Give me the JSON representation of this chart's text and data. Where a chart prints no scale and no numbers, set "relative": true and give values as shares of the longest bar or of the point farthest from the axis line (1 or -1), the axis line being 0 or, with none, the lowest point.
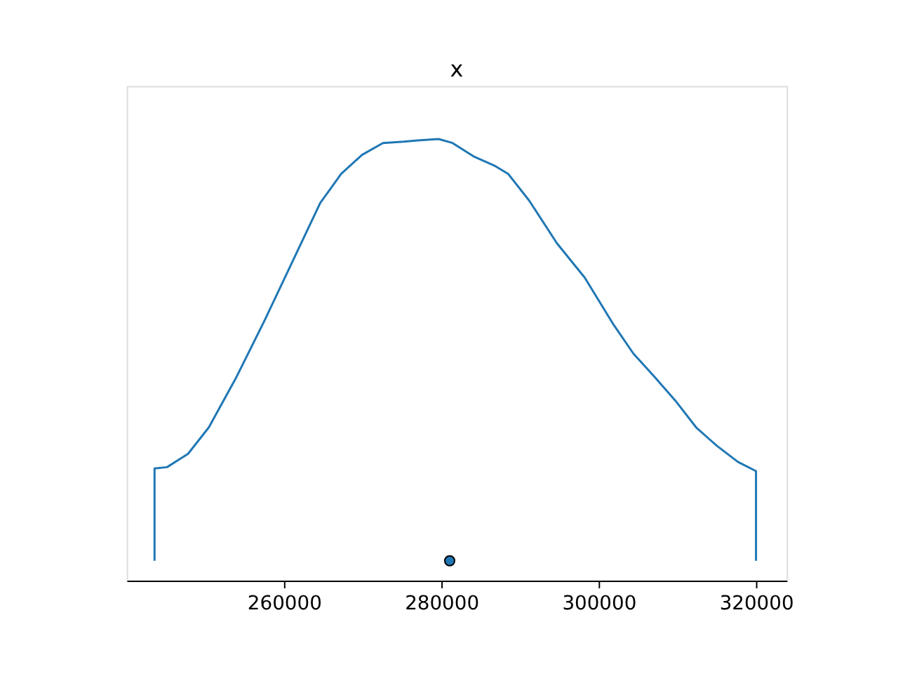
{
  "chart_data": {
    "type": "line",
    "title": "x",
    "relative": true,
    "xlim": [
      240000,
      323890
    ],
    "xticks": [
      260000,
      280000,
      300000,
      320000
    ],
    "grid": false,
    "series": [
      {
        "color": "#1f77b4",
        "marker": "none",
        "x": [
          243540,
          243540,
          245130,
          247790,
          250440,
          253980,
          257520,
          261060,
          264600,
          267260,
          269910,
          272570,
          275220,
          276990,
          279650,
          281420,
          284070,
          286730,
          288500,
          291150,
          294690,
          298230,
          301770,
          304420,
          307080,
          309730,
          312390,
          315040,
          317700,
          320000,
          320000
        ],
        "values": [
          0.045,
          0.254,
          0.257,
          0.287,
          0.347,
          0.462,
          0.589,
          0.722,
          0.855,
          0.921,
          0.964,
          0.991,
          0.994,
          0.997,
          1.0,
          0.991,
          0.961,
          0.94,
          0.921,
          0.861,
          0.764,
          0.686,
          0.583,
          0.514,
          0.462,
          0.408,
          0.347,
          0.305,
          0.269,
          0.248,
          0.045
        ]
      },
      {
        "type": "scatter",
        "color": "#1f77b4",
        "marker": "circle",
        "x": [
          281060
        ],
        "values": [
          0.045
        ]
      }
    ]
  }
}
